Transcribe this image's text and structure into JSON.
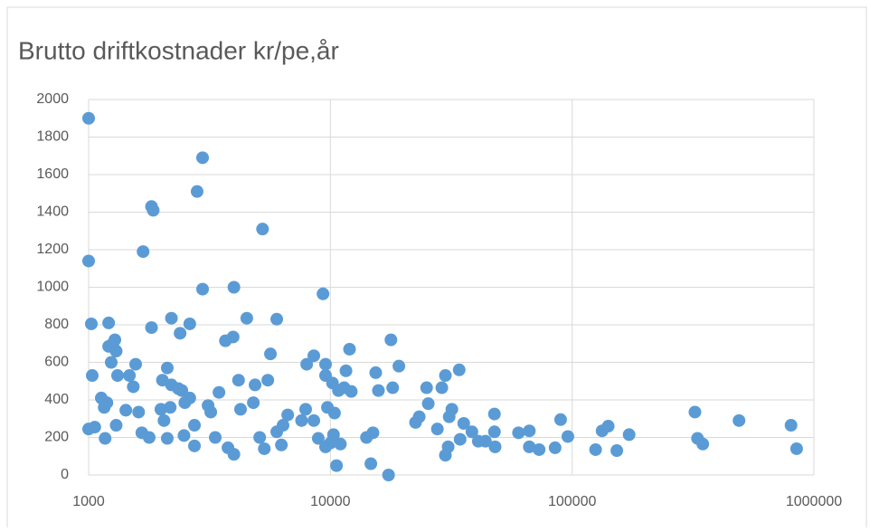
{
  "chart_data": {
    "type": "scatter",
    "title": "Brutto driftkostnader kr/pe,år",
    "x": [
      1000,
      1000,
      1026,
      1035,
      1000,
      1060,
      1128,
      1170,
      1190,
      1210,
      1210,
      1260,
      1284,
      1300,
      1300,
      1317,
      1240,
      1160,
      1425,
      1475,
      1530,
      1565,
      1610,
      1660,
      1680,
      1780,
      1820,
      1850,
      1820,
      1990,
      2020,
      2050,
      2115,
      2115,
      2175,
      2200,
      2200,
      2350,
      2390,
      2430,
      2480,
      2500,
      2620,
      2620,
      2740,
      2740,
      2810,
      2960,
      2960,
      3120,
      3200,
      3340,
      3460,
      3680,
      3770,
      3990,
      3960,
      3990,
      4170,
      4250,
      4510,
      4800,
      4880,
      5100,
      5240,
      5330,
      5510,
      5650,
      6000,
      6000,
      6270,
      6370,
      6660,
      7600,
      7900,
      7980,
      8540,
      8540,
      8910,
      9320,
      9550,
      9550,
      9550,
      9720,
      10000,
      10200,
      10300,
      10400,
      10600,
      10800,
      11000,
      11400,
      11600,
      12000,
      12200,
      14100,
      14700,
      15000,
      15400,
      15800,
      17400,
      17800,
      18100,
      19200,
      22500,
      23300,
      25000,
      25400,
      27700,
      28900,
      29900,
      29900,
      30700,
      31000,
      31800,
      34100,
      34400,
      35600,
      38500,
      40900,
      43800,
      47700,
      47700,
      48000,
      60000,
      66500,
      66500,
      73000,
      85000,
      89600,
      96000,
      125000,
      133000,
      141000,
      153000,
      172000,
      322000,
      330000,
      347000,
      490000,
      804000,
      848000
    ],
    "values": [
      1900,
      1140,
      805,
      530,
      245,
      255,
      410,
      195,
      385,
      810,
      685,
      700,
      720,
      660,
      265,
      530,
      600,
      360,
      345,
      530,
      470,
      590,
      335,
      225,
      1190,
      200,
      1430,
      1410,
      785,
      350,
      505,
      290,
      570,
      195,
      360,
      835,
      480,
      460,
      755,
      450,
      210,
      385,
      410,
      805,
      265,
      155,
      1510,
      1690,
      990,
      370,
      335,
      200,
      440,
      715,
      145,
      110,
      735,
      1000,
      505,
      350,
      835,
      385,
      480,
      200,
      1310,
      140,
      505,
      645,
      830,
      230,
      160,
      265,
      320,
      290,
      350,
      590,
      635,
      290,
      195,
      965,
      590,
      530,
      150,
      360,
      170,
      490,
      215,
      330,
      50,
      450,
      165,
      465,
      555,
      670,
      445,
      200,
      60,
      225,
      545,
      450,
      0,
      720,
      465,
      580,
      280,
      310,
      465,
      380,
      245,
      465,
      105,
      530,
      150,
      310,
      350,
      560,
      190,
      275,
      230,
      180,
      180,
      325,
      230,
      150,
      225,
      235,
      150,
      135,
      145,
      295,
      205,
      135,
      235,
      260,
      130,
      215,
      335,
      195,
      165,
      290,
      265,
      140
    ],
    "color": "#5b9bd5",
    "xscale": "log",
    "xlim": [
      1000,
      1000000
    ],
    "xticks": [
      1000,
      10000,
      100000,
      1000000
    ],
    "ylim": [
      0,
      2000
    ],
    "yticks": [
      0,
      200,
      400,
      600,
      800,
      1000,
      1200,
      1400,
      1600,
      1800,
      2000
    ],
    "grid": true
  }
}
